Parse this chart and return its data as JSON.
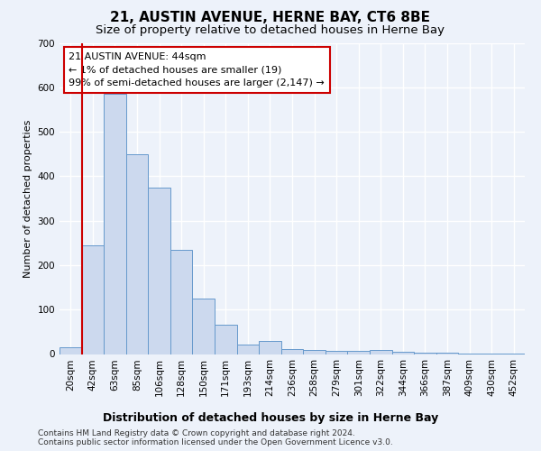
{
  "title": "21, AUSTIN AVENUE, HERNE BAY, CT6 8BE",
  "subtitle": "Size of property relative to detached houses in Herne Bay",
  "xlabel": "Distribution of detached houses by size in Herne Bay",
  "ylabel": "Number of detached properties",
  "categories": [
    "20sqm",
    "42sqm",
    "63sqm",
    "85sqm",
    "106sqm",
    "128sqm",
    "150sqm",
    "171sqm",
    "193sqm",
    "214sqm",
    "236sqm",
    "258sqm",
    "279sqm",
    "301sqm",
    "322sqm",
    "344sqm",
    "366sqm",
    "387sqm",
    "409sqm",
    "430sqm",
    "452sqm"
  ],
  "values": [
    15,
    245,
    585,
    450,
    375,
    235,
    125,
    65,
    22,
    30,
    12,
    10,
    8,
    8,
    10,
    5,
    3,
    3,
    2,
    1,
    1
  ],
  "bar_color": "#ccd9ee",
  "bar_edge_color": "#6699cc",
  "vline_x": 0.5,
  "vline_color": "#cc0000",
  "annotation_box_text": "21 AUSTIN AVENUE: 44sqm\n← 1% of detached houses are smaller (19)\n99% of semi-detached houses are larger (2,147) →",
  "background_color": "#edf2fa",
  "grid_color": "#ffffff",
  "ylim": [
    0,
    700
  ],
  "yticks": [
    0,
    100,
    200,
    300,
    400,
    500,
    600,
    700
  ],
  "footer": "Contains HM Land Registry data © Crown copyright and database right 2024.\nContains public sector information licensed under the Open Government Licence v3.0.",
  "title_fontsize": 11,
  "subtitle_fontsize": 9.5,
  "xlabel_fontsize": 9,
  "ylabel_fontsize": 8,
  "tick_fontsize": 7.5,
  "annotation_fontsize": 8,
  "footer_fontsize": 6.5
}
